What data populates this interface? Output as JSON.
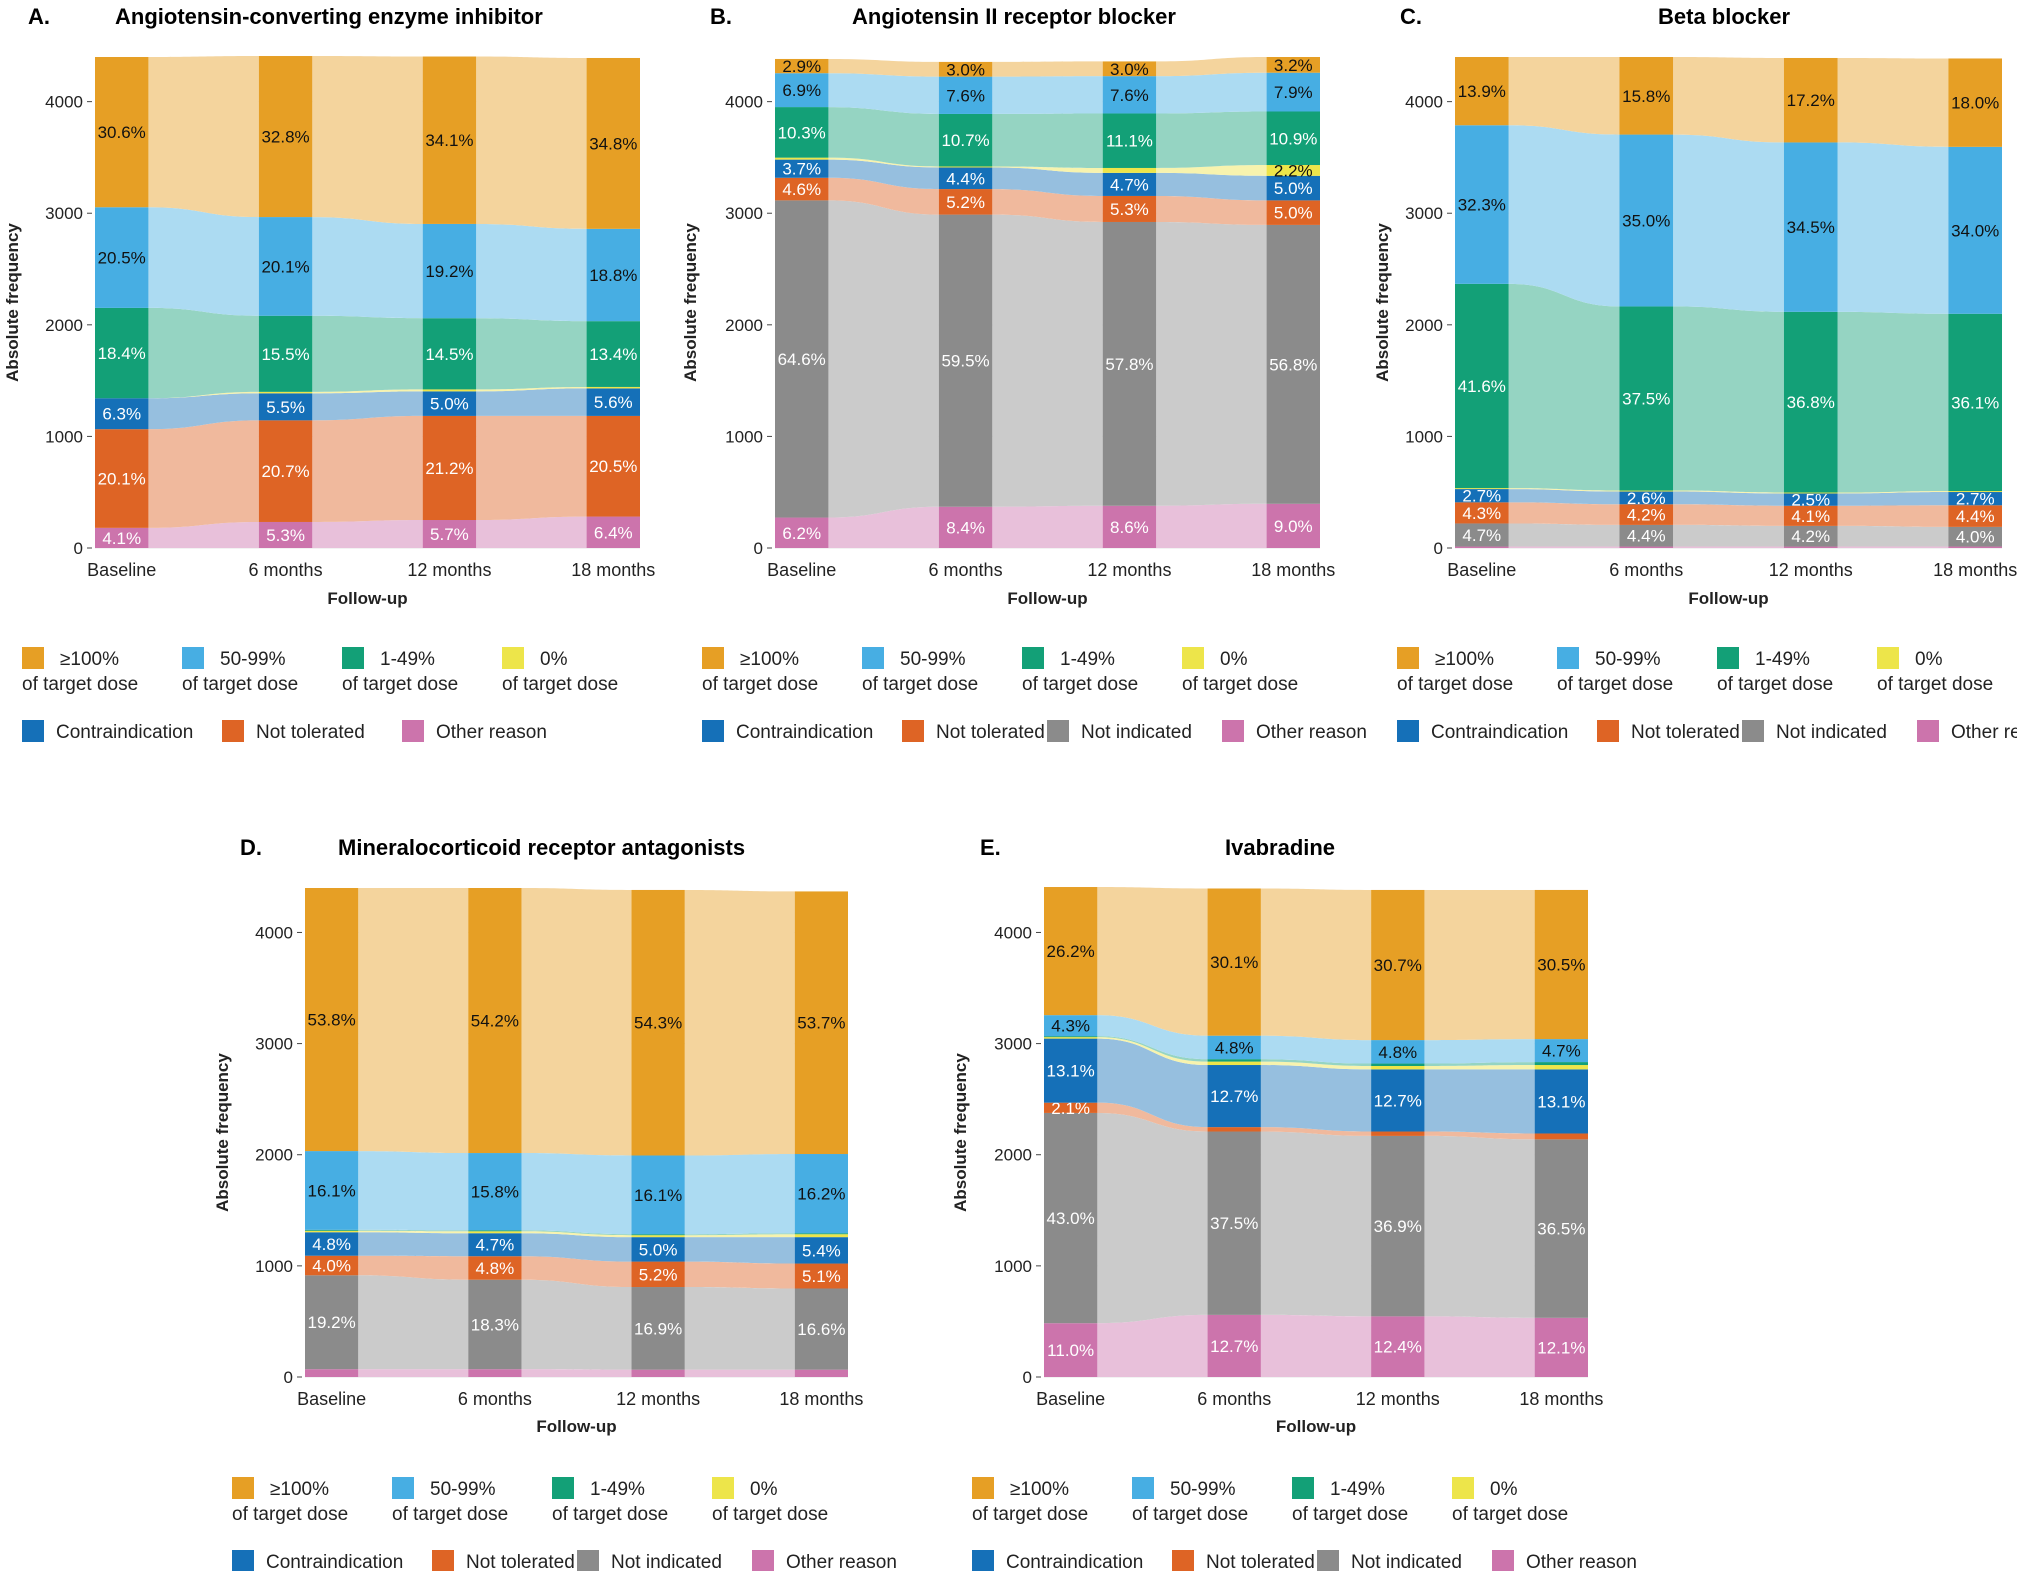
{
  "legend_labels": {
    "dose100": [
      "≥100%",
      "of target dose"
    ],
    "dose50": [
      "50-99%",
      "of target dose"
    ],
    "dose1": [
      "1-49%",
      "of target dose"
    ],
    "dose0": [
      "0%",
      "of target dose"
    ],
    "contra": "Contraindication",
    "nottol": "Not tolerated",
    "notind": "Not indicated",
    "other": "Other reason"
  },
  "colors": {
    "dose100": "#E69F25",
    "dose50": "#47AEE3",
    "dose1": "#13A077",
    "dose0": "#EDE54A",
    "contra": "#1570B8",
    "nottol": "#DE6425",
    "notind": "#8B8B8B",
    "other": "#CC74AC"
  },
  "chart_data": [
    {
      "type": "alluvial",
      "letter": "A.",
      "title": "Angiotensin-converting enzyme inhibitor",
      "xlabel": "Follow-up",
      "ylabel": "Absolute frequency",
      "ylim": [
        0,
        4400
      ],
      "yticks": [
        0,
        1000,
        2000,
        3000,
        4000
      ],
      "categories": [
        "Baseline",
        "6 months",
        "12 months",
        "18 months"
      ],
      "total": 4400,
      "legend_keys": [
        "dose100",
        "dose50",
        "dose1",
        "dose0",
        "contra",
        "nottol",
        "other"
      ],
      "segments": [
        {
          "key": "other",
          "values": [
            4.1,
            5.3,
            5.7,
            6.4
          ],
          "labels": [
            "4.1%",
            "5.3%",
            "5.7%",
            "6.4%"
          ]
        },
        {
          "key": "nottol",
          "values": [
            20.1,
            20.7,
            21.2,
            20.5
          ],
          "labels": [
            "20.1%",
            "20.7%",
            "21.2%",
            "20.5%"
          ]
        },
        {
          "key": "contra",
          "values": [
            6.3,
            5.5,
            5.0,
            5.6
          ],
          "labels": [
            "6.3%",
            "5.5%",
            "5.0%",
            "5.6%"
          ]
        },
        {
          "key": "dose0",
          "values": [
            0,
            0.3,
            0.4,
            0.3
          ],
          "labels": [
            "",
            "",
            "",
            ""
          ]
        },
        {
          "key": "dose1",
          "values": [
            18.4,
            15.5,
            14.5,
            13.4
          ],
          "labels": [
            "18.4%",
            "15.5%",
            "14.5%",
            "13.4%"
          ]
        },
        {
          "key": "dose50",
          "values": [
            20.5,
            20.1,
            19.2,
            18.8
          ],
          "labels": [
            "20.5%",
            "20.1%",
            "19.2%",
            "18.8%"
          ]
        },
        {
          "key": "dose100",
          "values": [
            30.6,
            32.8,
            34.1,
            34.8
          ],
          "labels": [
            "30.6%",
            "32.8%",
            "34.1%",
            "34.8%"
          ]
        }
      ]
    },
    {
      "type": "alluvial",
      "letter": "B.",
      "title": "Angiotensin II receptor blocker",
      "xlabel": "Follow-up",
      "ylabel": "Absolute frequency",
      "ylim": [
        0,
        4400
      ],
      "yticks": [
        0,
        1000,
        2000,
        3000,
        4000
      ],
      "categories": [
        "Baseline",
        "6 months",
        "12 months",
        "18 months"
      ],
      "total": 4400,
      "legend_keys": [
        "dose100",
        "dose50",
        "dose1",
        "dose0",
        "contra",
        "nottol",
        "notind",
        "other"
      ],
      "segments": [
        {
          "key": "other",
          "values": [
            6.2,
            8.4,
            8.6,
            9.0
          ],
          "labels": [
            "6.2%",
            "8.4%",
            "8.6%",
            "9.0%"
          ]
        },
        {
          "key": "notind",
          "values": [
            64.6,
            59.5,
            57.8,
            56.8
          ],
          "labels": [
            "64.6%",
            "59.5%",
            "57.8%",
            "56.8%"
          ]
        },
        {
          "key": "nottol",
          "values": [
            4.6,
            5.2,
            5.3,
            5.0
          ],
          "labels": [
            "4.6%",
            "5.2%",
            "5.3%",
            "5.0%"
          ]
        },
        {
          "key": "contra",
          "values": [
            3.7,
            4.4,
            4.7,
            5.0
          ],
          "labels": [
            "3.7%",
            "4.4%",
            "4.7%",
            "5.0%"
          ]
        },
        {
          "key": "dose0",
          "values": [
            0.4,
            0.2,
            1.0,
            2.2
          ],
          "labels": [
            "",
            "",
            "",
            "2.2%"
          ]
        },
        {
          "key": "dose1",
          "values": [
            10.3,
            10.7,
            11.1,
            10.9
          ],
          "labels": [
            "10.3%",
            "10.7%",
            "11.1%",
            "10.9%"
          ]
        },
        {
          "key": "dose50",
          "values": [
            6.9,
            7.6,
            7.6,
            7.9
          ],
          "labels": [
            "6.9%",
            "7.6%",
            "7.6%",
            "7.9%"
          ]
        },
        {
          "key": "dose100",
          "values": [
            2.9,
            3.0,
            3.0,
            3.2
          ],
          "labels": [
            "2.9%",
            "3.0%",
            "3.0%",
            "3.2%"
          ]
        }
      ]
    },
    {
      "type": "alluvial",
      "letter": "C.",
      "title": "Beta blocker",
      "xlabel": "Follow-up",
      "ylabel": "Absolute frequency",
      "ylim": [
        0,
        4400
      ],
      "yticks": [
        0,
        1000,
        2000,
        3000,
        4000
      ],
      "categories": [
        "Baseline",
        "6 months",
        "12 months",
        "18 months"
      ],
      "total": 4400,
      "legend_keys": [
        "dose100",
        "dose50",
        "dose1",
        "dose0",
        "contra",
        "nottol",
        "notind",
        "other"
      ],
      "segments": [
        {
          "key": "other",
          "values": [
            0.3,
            0.3,
            0.3,
            0.3
          ],
          "labels": [
            "",
            "",
            "",
            ""
          ]
        },
        {
          "key": "notind",
          "values": [
            4.7,
            4.4,
            4.2,
            4.0
          ],
          "labels": [
            "4.7%",
            "4.4%",
            "4.2%",
            "4.0%"
          ]
        },
        {
          "key": "nottol",
          "values": [
            4.3,
            4.2,
            4.1,
            4.4
          ],
          "labels": [
            "4.3%",
            "4.2%",
            "4.1%",
            "4.4%"
          ]
        },
        {
          "key": "contra",
          "values": [
            2.7,
            2.6,
            2.5,
            2.7
          ],
          "labels": [
            "2.7%",
            "2.6%",
            "2.5%",
            "2.7%"
          ]
        },
        {
          "key": "dose0",
          "values": [
            0.2,
            0.2,
            0.2,
            0.2
          ],
          "labels": [
            "",
            "",
            "",
            ""
          ]
        },
        {
          "key": "dose1",
          "values": [
            41.6,
            37.5,
            36.8,
            36.1
          ],
          "labels": [
            "41.6%",
            "37.5%",
            "36.8%",
            "36.1%"
          ]
        },
        {
          "key": "dose50",
          "values": [
            32.3,
            35.0,
            34.5,
            34.0
          ],
          "labels": [
            "32.3%",
            "35.0%",
            "34.5%",
            "34.0%"
          ]
        },
        {
          "key": "dose100",
          "values": [
            13.9,
            15.8,
            17.2,
            18.0
          ],
          "labels": [
            "13.9%",
            "15.8%",
            "17.2%",
            "18.0%"
          ]
        }
      ]
    },
    {
      "type": "alluvial",
      "letter": "D.",
      "title": "Mineralocorticoid receptor antagonists",
      "xlabel": "Follow-up",
      "ylabel": "Absolute frequency",
      "ylim": [
        0,
        4400
      ],
      "yticks": [
        0,
        1000,
        2000,
        3000,
        4000
      ],
      "categories": [
        "Baseline",
        "6 months",
        "12 months",
        "18 months"
      ],
      "total": 4400,
      "legend_keys": [
        "dose100",
        "dose50",
        "dose1",
        "dose0",
        "contra",
        "nottol",
        "notind",
        "other"
      ],
      "segments": [
        {
          "key": "other",
          "values": [
            1.6,
            1.6,
            1.5,
            1.5
          ],
          "labels": [
            "",
            "",
            "",
            ""
          ]
        },
        {
          "key": "notind",
          "values": [
            19.2,
            18.3,
            16.9,
            16.6
          ],
          "labels": [
            "19.2%",
            "18.3%",
            "16.9%",
            "16.6%"
          ]
        },
        {
          "key": "nottol",
          "values": [
            4.0,
            4.8,
            5.2,
            5.1
          ],
          "labels": [
            "4.0%",
            "4.8%",
            "5.2%",
            "5.1%"
          ]
        },
        {
          "key": "contra",
          "values": [
            4.8,
            4.7,
            5.0,
            5.4
          ],
          "labels": [
            "4.8%",
            "4.7%",
            "5.0%",
            "5.4%"
          ]
        },
        {
          "key": "dose0",
          "values": [
            0.3,
            0.4,
            0.4,
            0.6
          ],
          "labels": [
            "",
            "",
            "",
            ""
          ]
        },
        {
          "key": "dose1",
          "values": [
            0.2,
            0.2,
            0.2,
            0.2
          ],
          "labels": [
            "",
            "",
            "",
            ""
          ]
        },
        {
          "key": "dose50",
          "values": [
            16.1,
            15.8,
            16.1,
            16.2
          ],
          "labels": [
            "16.1%",
            "15.8%",
            "16.1%",
            "16.2%"
          ]
        },
        {
          "key": "dose100",
          "values": [
            53.8,
            54.2,
            54.3,
            53.7
          ],
          "labels": [
            "53.8%",
            "54.2%",
            "54.3%",
            "53.7%"
          ]
        }
      ]
    },
    {
      "type": "alluvial",
      "letter": "E.",
      "title": "Ivabradine",
      "xlabel": "Follow-up",
      "ylabel": "Absolute frequency",
      "ylim": [
        0,
        4400
      ],
      "yticks": [
        0,
        1000,
        2000,
        3000,
        4000
      ],
      "categories": [
        "Baseline",
        "6 months",
        "12 months",
        "18 months"
      ],
      "total": 4400,
      "legend_keys": [
        "dose100",
        "dose50",
        "dose1",
        "dose0",
        "contra",
        "nottol",
        "notind",
        "other"
      ],
      "segments": [
        {
          "key": "other",
          "values": [
            11.0,
            12.7,
            12.4,
            12.1
          ],
          "labels": [
            "11.0%",
            "12.7%",
            "12.4%",
            "12.1%"
          ]
        },
        {
          "key": "notind",
          "values": [
            43.0,
            37.5,
            36.9,
            36.5
          ],
          "labels": [
            "43.0%",
            "37.5%",
            "36.9%",
            "36.5%"
          ]
        },
        {
          "key": "nottol",
          "values": [
            2.1,
            0.9,
            0.9,
            1.2
          ],
          "labels": [
            "2.1%",
            "",
            "",
            ""
          ]
        },
        {
          "key": "contra",
          "values": [
            13.1,
            12.7,
            12.7,
            13.1
          ],
          "labels": [
            "13.1%",
            "12.7%",
            "12.7%",
            "13.1%"
          ]
        },
        {
          "key": "dose0",
          "values": [
            0.3,
            0.7,
            0.7,
            0.9
          ],
          "labels": [
            "",
            "",
            "",
            ""
          ]
        },
        {
          "key": "dose1",
          "values": [
            0.2,
            0.5,
            0.5,
            0.6
          ],
          "labels": [
            "",
            "",
            "",
            ""
          ]
        },
        {
          "key": "dose50",
          "values": [
            4.3,
            4.8,
            4.8,
            4.7
          ],
          "labels": [
            "4.3%",
            "4.8%",
            "4.8%",
            "4.7%"
          ]
        },
        {
          "key": "dose100",
          "values": [
            26.2,
            30.1,
            30.7,
            30.5
          ],
          "labels": [
            "26.2%",
            "30.1%",
            "30.7%",
            "30.5%"
          ]
        }
      ]
    }
  ]
}
